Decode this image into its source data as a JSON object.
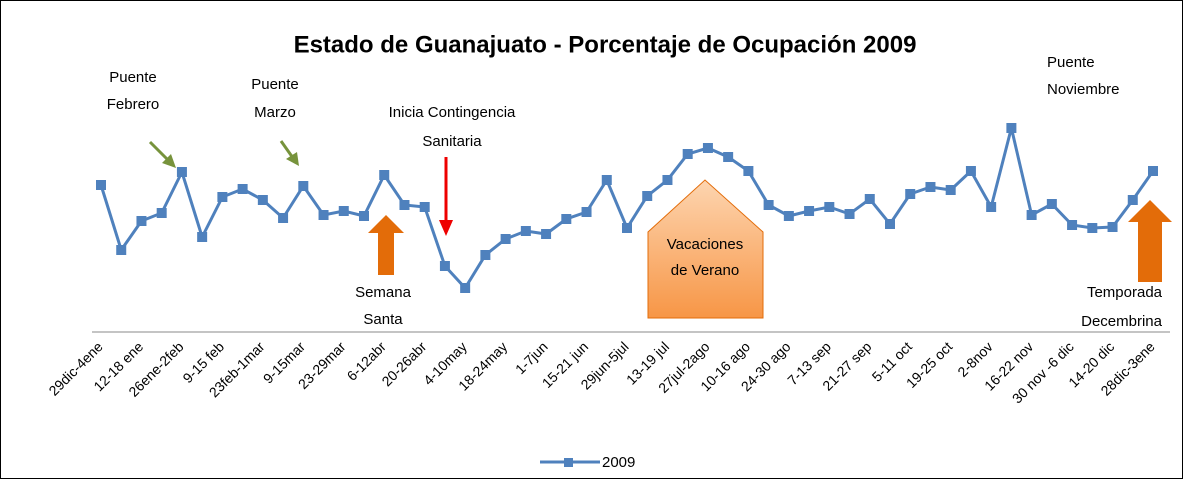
{
  "chart_data": {
    "type": "line",
    "title": "Estado de Guanajuato - Porcentaje de Ocupación 2009",
    "categories": [
      "29dic-4ene",
      null,
      "12-18 ene",
      null,
      "26ene-2feb",
      null,
      "9-15 feb",
      null,
      "23feb-1mar",
      null,
      "9-15mar",
      null,
      "23-29mar",
      null,
      "6-12abr",
      null,
      "20-26abr",
      null,
      "4-10may",
      null,
      "18-24may",
      null,
      "1-7jun",
      null,
      "15-21 jun",
      null,
      "29jun-5jul",
      null,
      "13-19 jul",
      null,
      "27jul-2ago",
      null,
      "10-16 ago",
      null,
      "24-30 ago",
      null,
      "7-13 sep",
      null,
      "21-27 sep",
      null,
      "5-11 oct",
      null,
      "19-25 oct",
      null,
      "2-8nov",
      null,
      "16-22 nov",
      null,
      "30 nov -6 dic",
      null,
      "14-20 dic",
      null,
      "28dic-3ene"
    ],
    "series": [
      {
        "name": "2009",
        "color": "#4f81bd",
        "values": [
          43,
          30,
          35.8,
          37.4,
          45.6,
          32.6,
          40.6,
          42.2,
          40,
          36.4,
          42.8,
          37,
          37.8,
          36.8,
          45,
          39,
          38.6,
          26.8,
          22.4,
          29,
          32.2,
          33.8,
          33.2,
          36.2,
          37.6,
          44,
          34.4,
          40.8,
          44,
          49.2,
          50.4,
          48.6,
          45.8,
          39,
          36.8,
          37.8,
          38.6,
          37.2,
          40.2,
          35.2,
          41.2,
          42.6,
          42,
          45.8,
          38.6,
          54.4,
          37,
          39.2,
          35,
          34.4,
          34.6,
          40,
          45.8
        ]
      }
    ],
    "annotations": [
      {
        "lines": [
          "Puente",
          "Febrero"
        ]
      },
      {
        "lines": [
          "Puente",
          "Marzo"
        ]
      },
      {
        "lines": [
          "Inicia Contingencia",
          "Sanitaria"
        ]
      },
      {
        "lines": [
          "Semana",
          "Santa"
        ]
      },
      {
        "lines": [
          "Vacaciones",
          "de Verano"
        ]
      },
      {
        "lines": [
          "Puente",
          "Noviembre"
        ]
      },
      {
        "lines": [
          "Temporada",
          "Decembrina"
        ]
      }
    ]
  }
}
